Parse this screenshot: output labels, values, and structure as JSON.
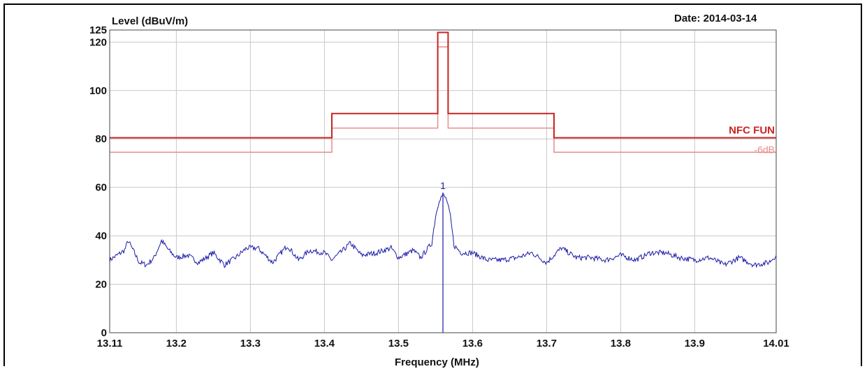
{
  "chart_data": {
    "type": "line",
    "ylabel": "Level (dBuV/m)",
    "xlabel": "Frequency (MHz)",
    "date_label": "Date: 2014-03-14",
    "xlim": [
      13.11,
      14.01
    ],
    "ylim": [
      0,
      125
    ],
    "x_ticks": [
      13.11,
      13.2,
      13.3,
      13.4,
      13.5,
      13.6,
      13.7,
      13.8,
      13.9,
      14.01
    ],
    "x_tick_labels": [
      "13.11",
      "13.2",
      "13.3",
      "13.4",
      "13.5",
      "13.6",
      "13.7",
      "13.8",
      "13.9",
      "14.01"
    ],
    "y_ticks": [
      0,
      20,
      40,
      60,
      80,
      100,
      120,
      125
    ],
    "y_tick_labels": [
      "0",
      "20",
      "40",
      "60",
      "80",
      "100",
      "120",
      "125"
    ],
    "grid": true,
    "colors": {
      "limit": "#cc2222",
      "limit_reduced": "#e98b8b",
      "trace": "#1a1aa8",
      "grid": "#c8c8c8"
    },
    "series": [
      {
        "name": "NFC FUN",
        "points": [
          [
            13.11,
            80.5
          ],
          [
            13.41,
            80.5
          ],
          [
            13.41,
            90.5
          ],
          [
            13.553,
            90.5
          ],
          [
            13.553,
            124
          ],
          [
            13.567,
            124
          ],
          [
            13.567,
            90.5
          ],
          [
            13.71,
            90.5
          ],
          [
            13.71,
            80.5
          ],
          [
            14.01,
            80.5
          ]
        ]
      },
      {
        "name": "-6dB",
        "points": [
          [
            13.11,
            74.5
          ],
          [
            13.41,
            74.5
          ],
          [
            13.41,
            84.5
          ],
          [
            13.553,
            84.5
          ],
          [
            13.553,
            118
          ],
          [
            13.567,
            118
          ],
          [
            13.567,
            84.5
          ],
          [
            13.71,
            84.5
          ],
          [
            13.71,
            74.5
          ],
          [
            14.01,
            74.5
          ]
        ]
      },
      {
        "name": "",
        "points": [
          [
            13.11,
            30
          ],
          [
            13.13,
            34
          ],
          [
            13.135,
            38
          ],
          [
            13.15,
            29
          ],
          [
            13.16,
            28
          ],
          [
            13.17,
            31
          ],
          [
            13.18,
            38
          ],
          [
            13.19,
            34
          ],
          [
            13.2,
            31
          ],
          [
            13.215,
            32
          ],
          [
            13.23,
            29
          ],
          [
            13.25,
            33
          ],
          [
            13.265,
            28
          ],
          [
            13.28,
            31
          ],
          [
            13.295,
            35
          ],
          [
            13.31,
            35
          ],
          [
            13.32,
            32
          ],
          [
            13.33,
            29
          ],
          [
            13.35,
            36
          ],
          [
            13.365,
            30
          ],
          [
            13.38,
            34
          ],
          [
            13.4,
            33
          ],
          [
            13.41,
            30
          ],
          [
            13.425,
            34
          ],
          [
            13.435,
            37
          ],
          [
            13.45,
            32
          ],
          [
            13.47,
            33
          ],
          [
            13.49,
            35
          ],
          [
            13.5,
            31
          ],
          [
            13.52,
            34
          ],
          [
            13.53,
            31
          ],
          [
            13.545,
            37
          ],
          [
            13.55,
            48
          ],
          [
            13.555,
            55
          ],
          [
            13.56,
            57
          ],
          [
            13.565,
            55
          ],
          [
            13.57,
            48
          ],
          [
            13.575,
            36
          ],
          [
            13.585,
            33
          ],
          [
            13.6,
            33
          ],
          [
            13.62,
            30
          ],
          [
            13.64,
            30
          ],
          [
            13.66,
            31
          ],
          [
            13.68,
            33
          ],
          [
            13.7,
            29
          ],
          [
            13.72,
            35
          ],
          [
            13.74,
            31
          ],
          [
            13.76,
            31
          ],
          [
            13.78,
            30
          ],
          [
            13.8,
            32
          ],
          [
            13.82,
            30
          ],
          [
            13.84,
            33
          ],
          [
            13.86,
            33
          ],
          [
            13.88,
            31
          ],
          [
            13.9,
            30
          ],
          [
            13.92,
            31
          ],
          [
            13.94,
            28
          ],
          [
            13.96,
            31
          ],
          [
            13.98,
            28
          ],
          [
            14.0,
            29
          ],
          [
            14.01,
            32
          ]
        ]
      }
    ],
    "marker": {
      "label": "1",
      "x": 13.56,
      "y": 57
    },
    "annotations": [
      "NFC FUN",
      "-6dB"
    ]
  }
}
